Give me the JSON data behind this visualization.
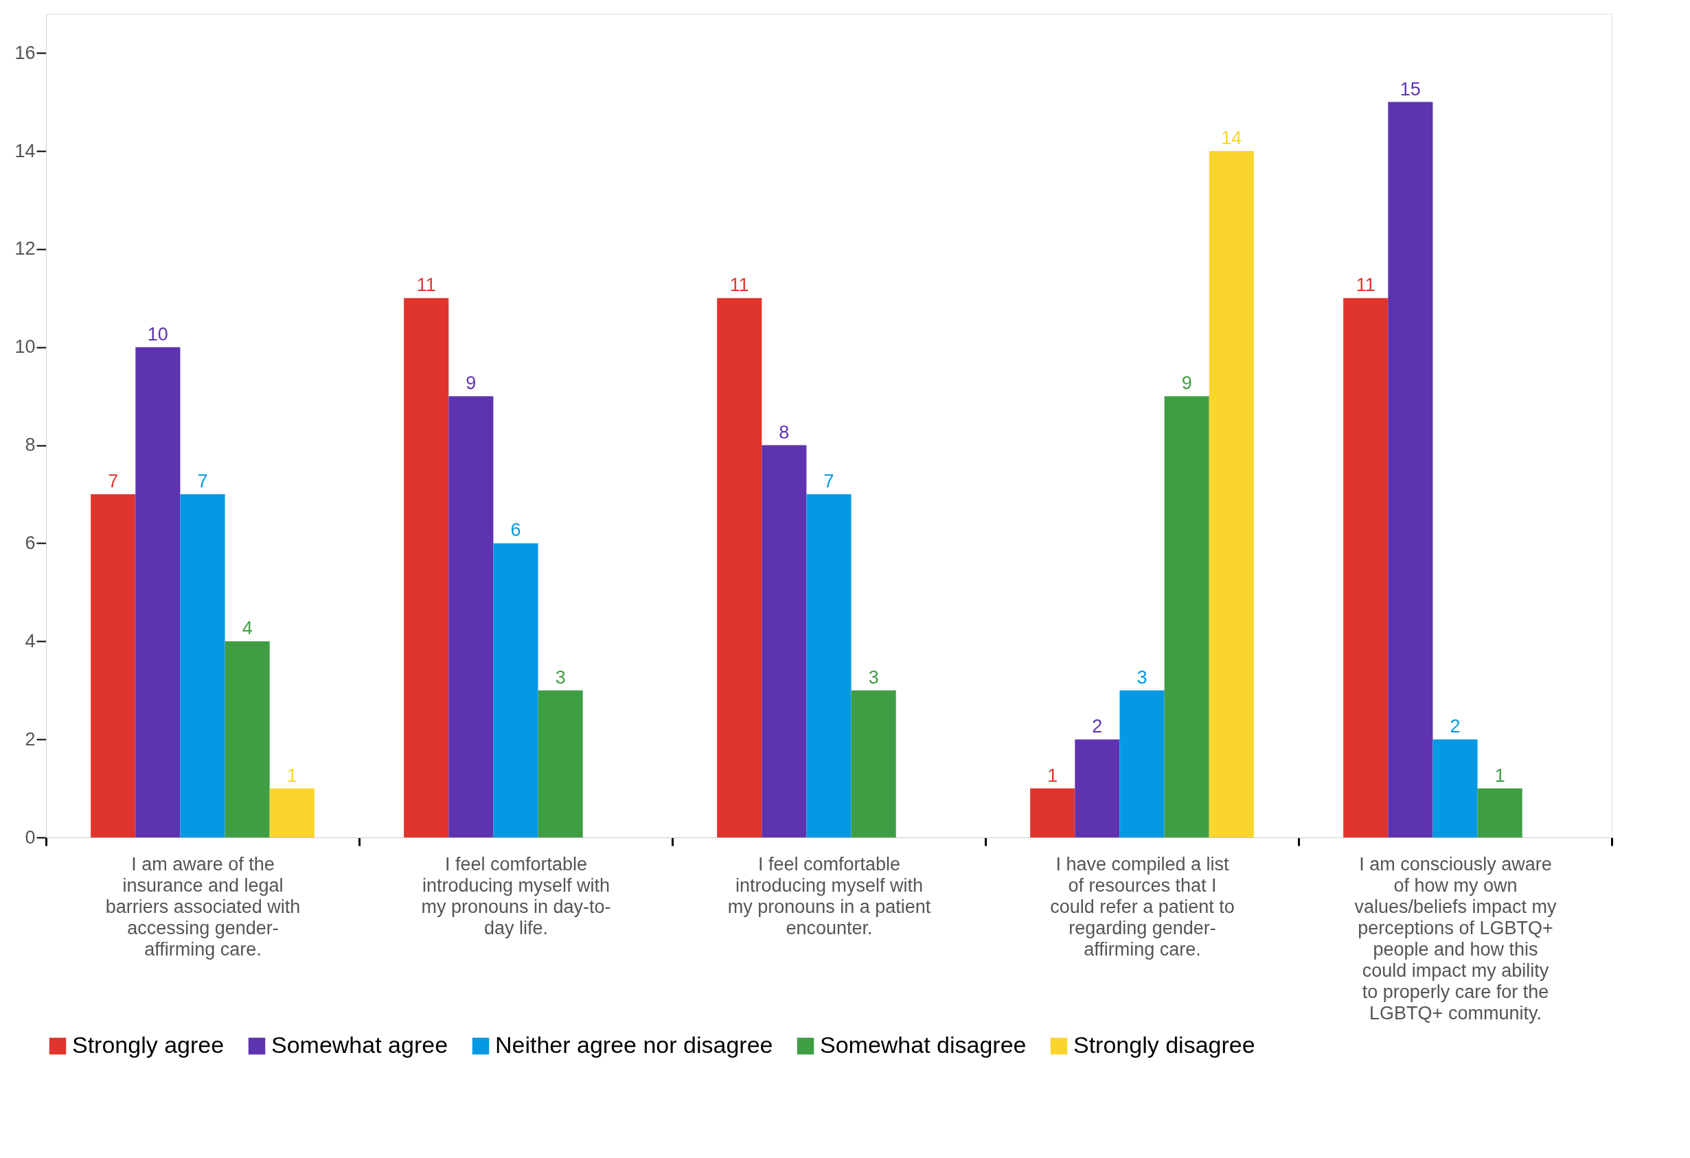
{
  "chart_data": {
    "type": "bar",
    "categories": [
      "I am aware of the insurance and legal barriers associated with accessing gender-affirming care.",
      "I feel comfortable introducing myself with my pronouns in day-to-day life.",
      "I feel comfortable introducing myself with my pronouns in a patient encounter.",
      "I have compiled a list of resources that I could refer a patient to regarding gender-affirming care.",
      "I am consciously aware of how my own values/beliefs impact my perceptions of LGBTQ+ people and how this could impact my ability to properly care for the LGBTQ+ community."
    ],
    "series": [
      {
        "name": "Strongly agree",
        "color": "#e0352e",
        "values": [
          7,
          11,
          11,
          1,
          11
        ]
      },
      {
        "name": "Somewhat agree",
        "color": "#5e33b0",
        "values": [
          10,
          9,
          8,
          2,
          15
        ]
      },
      {
        "name": "Neither agree nor disagree",
        "color": "#0599e3",
        "values": [
          7,
          6,
          7,
          3,
          2
        ]
      },
      {
        "name": "Somewhat disagree",
        "color": "#3f9e44",
        "values": [
          4,
          3,
          3,
          9,
          1
        ]
      },
      {
        "name": "Strongly disagree",
        "color": "#fad52e",
        "values": [
          1,
          null,
          null,
          14,
          null
        ]
      }
    ],
    "ylim": [
      0,
      16.8
    ],
    "yticks": [
      0,
      2,
      4,
      6,
      8,
      10,
      12,
      14,
      16
    ],
    "grid": false,
    "legend": "bottom",
    "data_labels": true
  }
}
